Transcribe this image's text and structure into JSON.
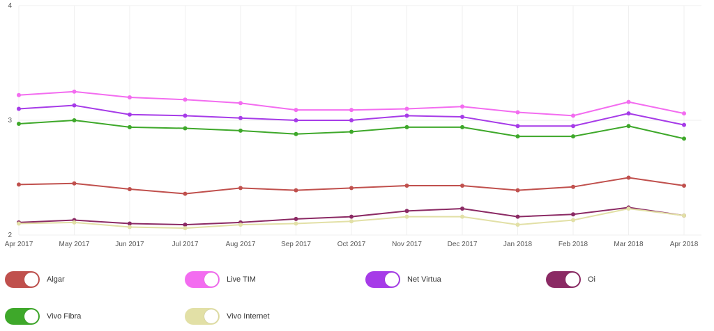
{
  "chart_data": {
    "type": "line",
    "title": "",
    "xlabel": "",
    "ylabel": "",
    "ylim": [
      2,
      4
    ],
    "yticks": [
      "2",
      "3",
      "4"
    ],
    "grid": true,
    "categories": [
      "Apr 2017",
      "May 2017",
      "Jun 2017",
      "Jul 2017",
      "Aug 2017",
      "Sep 2017",
      "Oct 2017",
      "Nov 2017",
      "Dec 2017",
      "Jan 2018",
      "Feb 2018",
      "Mar 2018",
      "Apr 2018"
    ],
    "series": [
      {
        "name": "Algar",
        "color": "#c0504d",
        "values": [
          2.44,
          2.45,
          2.4,
          2.36,
          2.41,
          2.39,
          2.41,
          2.43,
          2.43,
          2.39,
          2.42,
          2.5,
          2.43
        ]
      },
      {
        "name": "Live TIM",
        "color": "#f36cf0",
        "values": [
          3.22,
          3.25,
          3.2,
          3.18,
          3.15,
          3.09,
          3.09,
          3.1,
          3.12,
          3.07,
          3.04,
          3.16,
          3.06
        ]
      },
      {
        "name": "Net Virtua",
        "color": "#a63be8",
        "values": [
          3.1,
          3.13,
          3.05,
          3.04,
          3.02,
          3.0,
          3.0,
          3.04,
          3.03,
          2.95,
          2.95,
          3.06,
          2.96
        ]
      },
      {
        "name": "Oi",
        "color": "#8b2a64",
        "values": [
          2.11,
          2.13,
          2.1,
          2.09,
          2.11,
          2.14,
          2.16,
          2.21,
          2.23,
          2.16,
          2.18,
          2.24,
          2.17
        ]
      },
      {
        "name": "Vivo Fibra",
        "color": "#3ea82a",
        "values": [
          2.97,
          3.0,
          2.94,
          2.93,
          2.91,
          2.88,
          2.9,
          2.94,
          2.94,
          2.86,
          2.86,
          2.95,
          2.84
        ]
      },
      {
        "name": "Vivo Internet",
        "color": "#e2e0a6",
        "values": [
          2.1,
          2.11,
          2.07,
          2.06,
          2.09,
          2.1,
          2.12,
          2.16,
          2.16,
          2.09,
          2.13,
          2.23,
          2.17
        ]
      }
    ]
  }
}
